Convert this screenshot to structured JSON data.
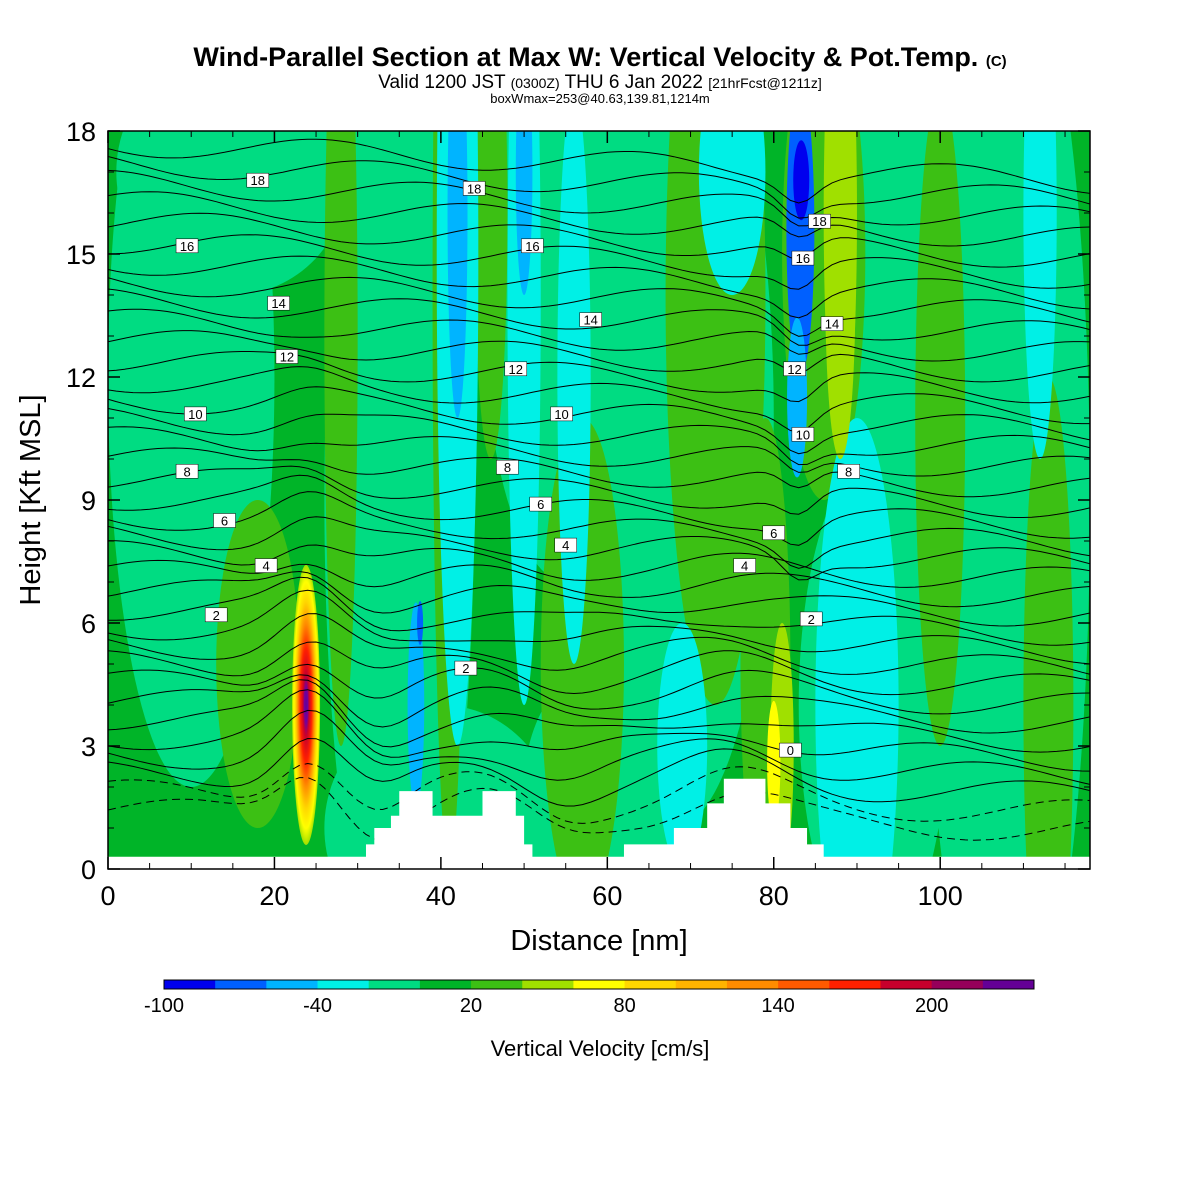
{
  "header": {
    "title": "Wind-Parallel Section at Max W: Vertical Velocity & Pot.Temp.",
    "copyright": "(C)",
    "valid_prefix": "Valid 1200 JST",
    "valid_utc": "(0300Z)",
    "valid_date": "THU 6 Jan 2022",
    "forecast_tag": "[21hrFcst@1211z]",
    "boxinfo": "boxWmax=253@40.63,139.81,1214m"
  },
  "chart_data": {
    "type": "heatmap",
    "title": "Wind-Parallel Section at Max W: Vertical Velocity & Pot.Temp.",
    "xlabel": "Distance [nm]",
    "ylabel": "Height [Kft MSL]",
    "xlim": [
      0,
      118
    ],
    "ylim": [
      0,
      18
    ],
    "xticks": [
      0,
      20,
      40,
      60,
      80,
      100
    ],
    "yticks": [
      0,
      3,
      6,
      9,
      12,
      15,
      18
    ],
    "colorbar": {
      "label": "Vertical Velocity [cm/s]",
      "ticklabels": [
        "-100",
        "-40",
        "20",
        "80",
        "140",
        "200"
      ],
      "colors": [
        "#0000ee",
        "#0060ff",
        "#00b4ff",
        "#00f0e6",
        "#00dc82",
        "#00b428",
        "#3cc014",
        "#a0e000",
        "#ffff00",
        "#ffd700",
        "#ffb400",
        "#ff8c00",
        "#ff5a00",
        "#ff2000",
        "#c8002c",
        "#96005a",
        "#640096"
      ]
    },
    "terrain": [
      {
        "x": 0,
        "h": 0.3
      },
      {
        "x": 30,
        "h": 0.3
      },
      {
        "x": 31,
        "h": 0.6
      },
      {
        "x": 32,
        "h": 1.0
      },
      {
        "x": 34,
        "h": 1.3
      },
      {
        "x": 35,
        "h": 1.9
      },
      {
        "x": 38,
        "h": 1.9
      },
      {
        "x": 39,
        "h": 1.3
      },
      {
        "x": 44,
        "h": 1.3
      },
      {
        "x": 45,
        "h": 1.9
      },
      {
        "x": 48,
        "h": 1.9
      },
      {
        "x": 49,
        "h": 1.3
      },
      {
        "x": 50,
        "h": 0.6
      },
      {
        "x": 51,
        "h": 0.3
      },
      {
        "x": 61,
        "h": 0.3
      },
      {
        "x": 62,
        "h": 0.6
      },
      {
        "x": 66,
        "h": 0.6
      },
      {
        "x": 68,
        "h": 1.0
      },
      {
        "x": 72,
        "h": 1.6
      },
      {
        "x": 74,
        "h": 2.2
      },
      {
        "x": 77,
        "h": 2.2
      },
      {
        "x": 79,
        "h": 1.6
      },
      {
        "x": 82,
        "h": 1.0
      },
      {
        "x": 84,
        "h": 0.6
      },
      {
        "x": 86,
        "h": 0.3
      },
      {
        "x": 118,
        "h": 0.3
      }
    ],
    "features": [
      {
        "name": "updraft",
        "x": 23.8,
        "y": 4.0,
        "w": 3.6,
        "h": 7.6,
        "w_cms": 253
      },
      {
        "name": "downdraft",
        "x": 83,
        "y": 15,
        "w": 2.2,
        "h": 8,
        "w_cms": -90
      },
      {
        "name": "downdraft",
        "x": 83,
        "y": 11,
        "w": 2.4,
        "h": 6,
        "w_cms": -60
      }
    ],
    "isentrope_labels": [
      "18",
      "16",
      "14",
      "12",
      "10",
      "8",
      "6",
      "4",
      "2",
      "0"
    ]
  }
}
